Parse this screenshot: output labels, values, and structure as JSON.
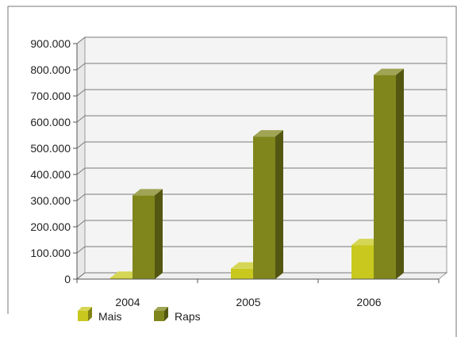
{
  "chart_data": {
    "type": "bar",
    "title": "",
    "xlabel": "",
    "ylabel": "",
    "categories": [
      "2004",
      "2005",
      "2006"
    ],
    "series": [
      {
        "name": "Mais",
        "values": [
          5000,
          40000,
          130000
        ],
        "color": "#c8c81e"
      },
      {
        "name": "Raps",
        "values": [
          320000,
          545000,
          780000
        ],
        "color": "#80861c"
      }
    ],
    "ylim": [
      0,
      900000
    ],
    "yticks": [
      0,
      100000,
      200000,
      300000,
      400000,
      500000,
      600000,
      700000,
      800000,
      900000
    ],
    "ytick_labels": [
      "0",
      "100.000",
      "200.000",
      "300.000",
      "400.000",
      "500.000",
      "600.000",
      "700.000",
      "800.000",
      "900.000"
    ],
    "grid": true,
    "legend": "bottom-left",
    "style": "3d-bar",
    "colors": {
      "plot_background": "#f4f4f4",
      "gridline": "#7a7a7a",
      "frame": "#777777"
    }
  }
}
